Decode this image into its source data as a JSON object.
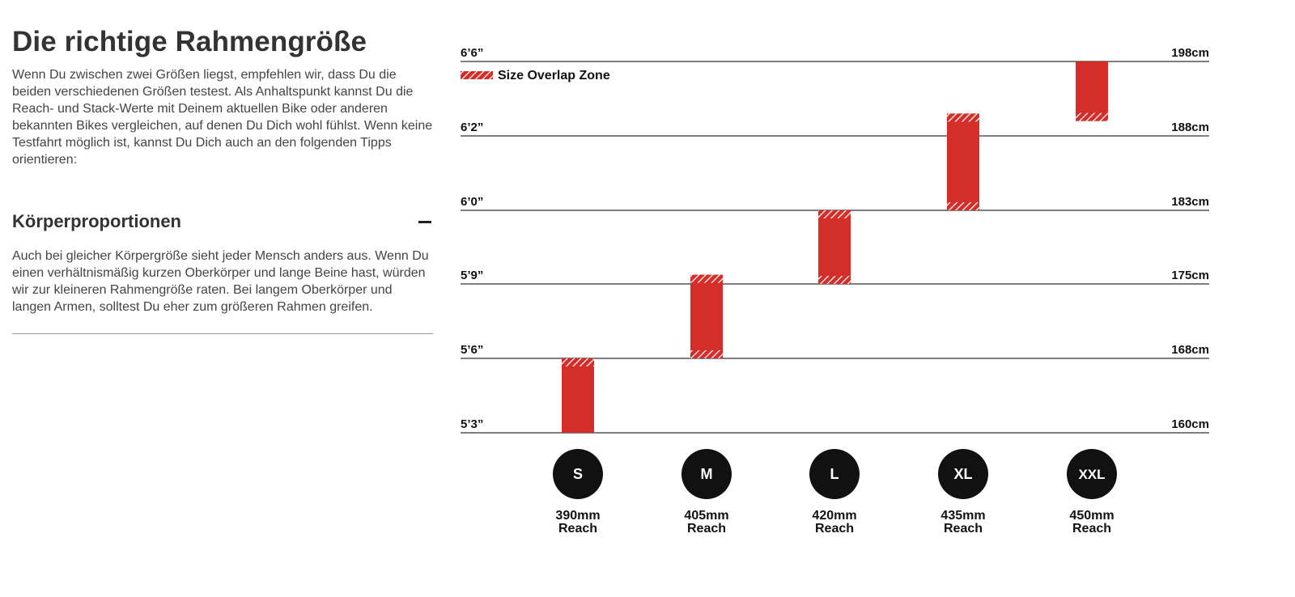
{
  "page": {
    "title": "Die richtige Rahmengröße",
    "intro": "Wenn Du zwischen zwei Größen liegst, empfehlen wir, dass Du die beiden verschiedenen Größen testest. Als Anhaltspunkt kannst Du die Reach- und Stack-Werte mit Deinem aktuellen Bike oder anderen bekannten Bikes vergleichen, auf denen Du Dich wohl fühlst. Wenn keine Testfahrt möglich ist, kannst Du Dich auch an den folgenden Tipps orientieren:"
  },
  "accordion": {
    "title": "Körperproportionen",
    "expanded": true,
    "toggle_icon": "minus-icon",
    "body": "Auch bei gleicher Körpergröße sieht jeder Mensch anders aus. Wenn Du einen verhältnismäßig kurzen Oberkörper und lange Beine hast, würden wir zur kleineren Rahmengröße raten. Bei langem Oberkörper und langen Armen, solltest Du eher zum größeren Rahmen greifen."
  },
  "colors": {
    "bar": "#d42e2b",
    "badge": "#111111",
    "text": "#333333",
    "grid": "#555555"
  },
  "chart_data": {
    "type": "range-bar",
    "legend": {
      "label": "Size Overlap Zone",
      "position": "top-left"
    },
    "y_unit": "cm",
    "ylim": [
      160,
      198
    ],
    "y_ticks": [
      {
        "value": 160,
        "left_label": "5’3”",
        "right_label": "160cm"
      },
      {
        "value": 168,
        "left_label": "5’6”",
        "right_label": "168cm"
      },
      {
        "value": 175,
        "left_label": "5’9”",
        "right_label": "175cm"
      },
      {
        "value": 183,
        "left_label": "6’0”",
        "right_label": "183cm"
      },
      {
        "value": 188,
        "left_label": "6’2”",
        "right_label": "188cm"
      },
      {
        "value": 198,
        "left_label": "6’6”",
        "right_label": "198cm"
      }
    ],
    "sizes": [
      {
        "size": "S",
        "reach_value": "390mm",
        "reach_label": "Reach",
        "min": 160,
        "max": 168,
        "overlap_top": true,
        "overlap_bottom": false
      },
      {
        "size": "M",
        "reach_value": "405mm",
        "reach_label": "Reach",
        "min": 168,
        "max": 176,
        "overlap_top": true,
        "overlap_bottom": true
      },
      {
        "size": "L",
        "reach_value": "420mm",
        "reach_label": "Reach",
        "min": 175,
        "max": 183,
        "overlap_top": true,
        "overlap_bottom": true
      },
      {
        "size": "XL",
        "reach_value": "435mm",
        "reach_label": "Reach",
        "min": 183,
        "max": 191,
        "overlap_top": true,
        "overlap_bottom": true
      },
      {
        "size": "XXL",
        "reach_value": "450mm",
        "reach_label": "Reach",
        "min": 190,
        "max": 198,
        "overlap_top": false,
        "overlap_bottom": true
      }
    ]
  }
}
